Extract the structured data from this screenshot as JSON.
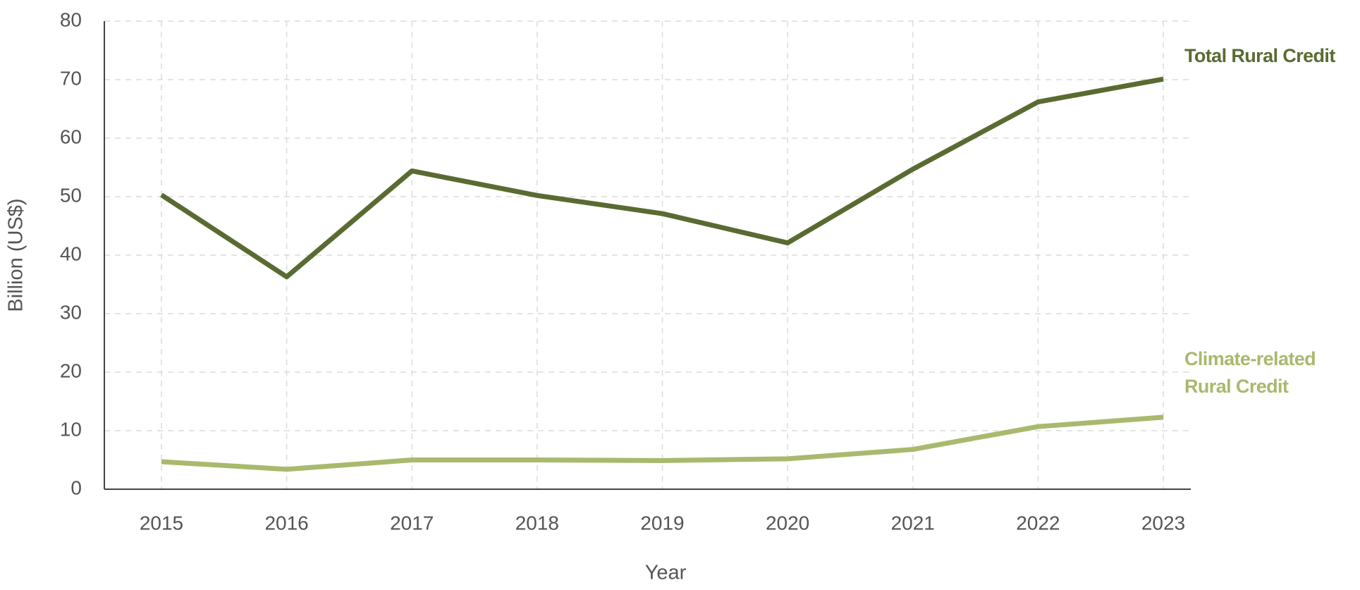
{
  "chart_data": {
    "type": "line",
    "x_label": "Year",
    "y_label": "Billion (US$)",
    "categories": [
      "2015",
      "2016",
      "2017",
      "2018",
      "2019",
      "2020",
      "2021",
      "2022",
      "2023"
    ],
    "series": [
      {
        "name": "Total Rural Credit",
        "color": "#5a6b32",
        "values": [
          50.3,
          36.3,
          54.4,
          50.2,
          47.1,
          42.1,
          54.7,
          66.2,
          70.1
        ]
      },
      {
        "name": "Climate-related Rural Credit",
        "color": "#a9b96d",
        "values": [
          4.7,
          3.4,
          5.0,
          5.0,
          4.9,
          5.2,
          6.8,
          10.7,
          12.3
        ]
      }
    ],
    "ylim": [
      0,
      80
    ],
    "yticks": [
      0,
      10,
      20,
      30,
      40,
      50,
      60,
      70,
      80
    ],
    "grid": true
  }
}
